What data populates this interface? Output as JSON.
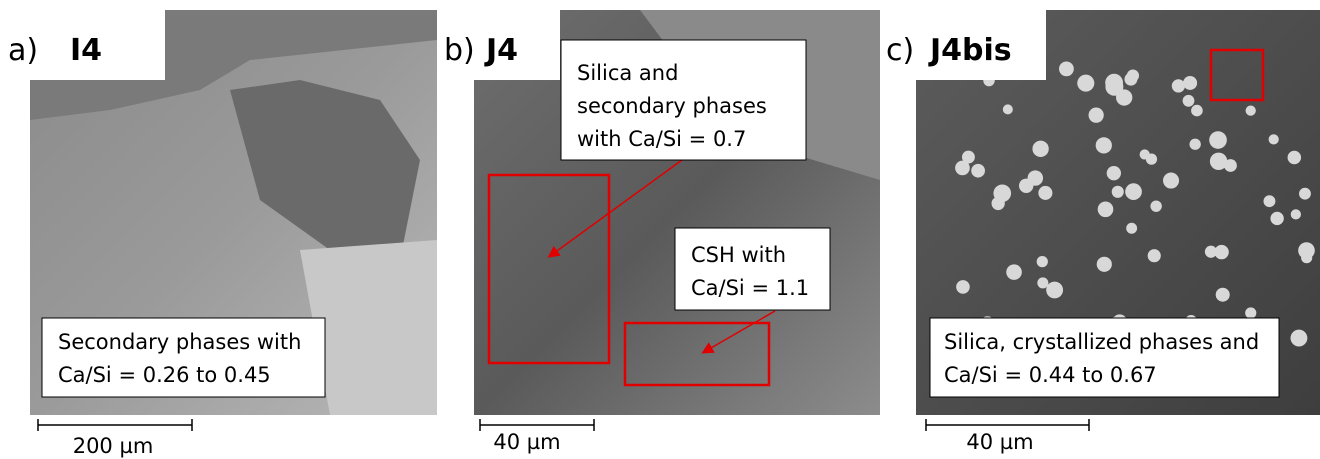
{
  "panels": [
    {
      "letter": "a)",
      "sample": "I4",
      "annotations": [
        {
          "lines": [
            "Secondary phases with",
            "Ca/Si = 0.26 to 0.45"
          ]
        }
      ],
      "scale_bar": "200 µm"
    },
    {
      "letter": "b)",
      "sample": "J4",
      "annotations": [
        {
          "lines": [
            "Silica and",
            "secondary phases",
            "with Ca/Si = 0.7"
          ]
        },
        {
          "lines": [
            "CSH with",
            "Ca/Si = 1.1"
          ]
        }
      ],
      "scale_bar": "40 µm"
    },
    {
      "letter": "c)",
      "sample": "J4bis",
      "annotations": [
        {
          "lines": [
            "Silica, crystallized phases and",
            "Ca/Si = 0.44 to 0.67"
          ]
        }
      ],
      "scale_bar": "40 µm"
    }
  ]
}
